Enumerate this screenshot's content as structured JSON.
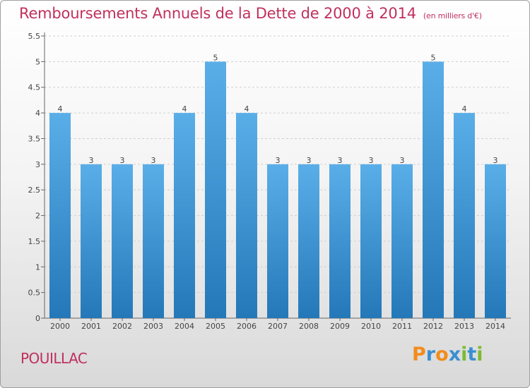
{
  "title": "Remboursements Annuels de la Dette de 2000 à 2014",
  "unit_note": "(en milliers d'€)",
  "footer": {
    "city": "POUILLAC"
  },
  "logo": {
    "text": "Proxiti",
    "letters": [
      {
        "ch": "P",
        "color": "#f28c1c"
      },
      {
        "ch": "r",
        "color": "#3a8fd1"
      },
      {
        "ch": "o",
        "color": "#f28c1c"
      },
      {
        "ch": "x",
        "color": "#3a8fd1"
      },
      {
        "ch": "i",
        "color": "#7dbb32"
      },
      {
        "ch": "t",
        "color": "#3a8fd1"
      },
      {
        "ch": "i",
        "color": "#7dbb32"
      }
    ]
  },
  "colors": {
    "bar_light": "#5aaee8",
    "bar_dark": "#2478b8",
    "accent": "#c0305e",
    "grid": "#cfcfcf"
  },
  "chart_data": {
    "type": "bar",
    "title": "Remboursements Annuels de la Dette de 2000 à 2014",
    "xlabel": "",
    "ylabel": "",
    "categories": [
      "2000",
      "2001",
      "2002",
      "2003",
      "2004",
      "2005",
      "2006",
      "2007",
      "2008",
      "2009",
      "2010",
      "2011",
      "2012",
      "2013",
      "2014"
    ],
    "values": [
      4,
      3,
      3,
      3,
      4,
      5,
      4,
      3,
      3,
      3,
      3,
      3,
      5,
      4,
      3
    ],
    "ylim": [
      0,
      5.5
    ],
    "yticks": [
      "0",
      "0.5",
      "1",
      "1.5",
      "2",
      "2.5",
      "3",
      "3.5",
      "4",
      "4.5",
      "5",
      "5.5"
    ],
    "grid": true
  }
}
